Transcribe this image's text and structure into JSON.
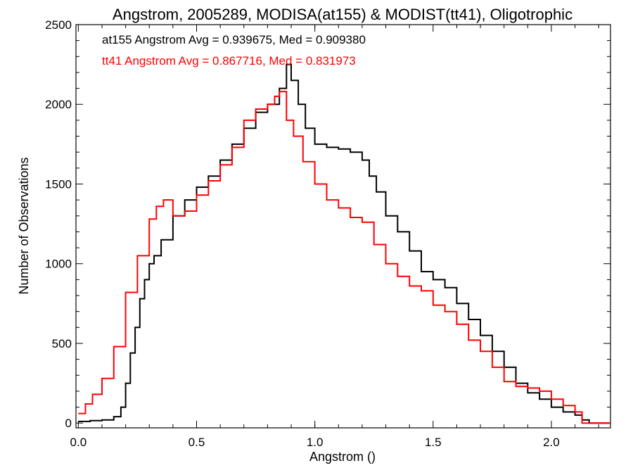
{
  "chart_data": {
    "type": "line",
    "title": "Angstrom, 2005289, MODISA(at155) & MODIST(tt41), Oligotrophic",
    "xlabel": "Angstrom ()",
    "ylabel": "Number of Observations",
    "xlim": [
      -0.01,
      2.25
    ],
    "ylim": [
      -30,
      2500
    ],
    "xticks": [
      "0.0",
      "0.5",
      "1.0",
      "1.5",
      "2.0"
    ],
    "xtick_values": [
      0.0,
      0.5,
      1.0,
      1.5,
      2.0
    ],
    "yticks": [
      "0",
      "500",
      "1000",
      "1500",
      "2000",
      "2500"
    ],
    "ytick_values": [
      0,
      500,
      1000,
      1500,
      2000,
      2500
    ],
    "grid": false,
    "legend": "top-left",
    "annotations": [
      {
        "text": "at155 Angstrom Avg = 0.939675, Med = 0.909380",
        "color": "#000000"
      },
      {
        "text": "tt41 Angstrom Avg = 0.867716, Med = 0.831973",
        "color": "#ff0000"
      }
    ],
    "series": [
      {
        "color": "#000000",
        "style": "step",
        "x": [
          0.0,
          0.05,
          0.1,
          0.15,
          0.18,
          0.2,
          0.22,
          0.24,
          0.26,
          0.28,
          0.3,
          0.32,
          0.35,
          0.4,
          0.45,
          0.5,
          0.55,
          0.6,
          0.65,
          0.7,
          0.75,
          0.8,
          0.85,
          0.88,
          0.9,
          0.93,
          0.96,
          1.0,
          1.05,
          1.1,
          1.15,
          1.2,
          1.23,
          1.26,
          1.3,
          1.35,
          1.4,
          1.45,
          1.5,
          1.55,
          1.6,
          1.65,
          1.7,
          1.75,
          1.8,
          1.85,
          1.9,
          1.95,
          2.0,
          2.05,
          2.1,
          2.13,
          2.16,
          2.2,
          2.25
        ],
        "y": [
          10,
          15,
          20,
          40,
          100,
          250,
          440,
          600,
          780,
          900,
          1000,
          1050,
          1150,
          1300,
          1400,
          1480,
          1550,
          1650,
          1750,
          1850,
          1950,
          2000,
          2100,
          2250,
          2150,
          2000,
          1850,
          1750,
          1730,
          1720,
          1700,
          1650,
          1550,
          1450,
          1300,
          1200,
          1080,
          950,
          900,
          850,
          750,
          650,
          550,
          450,
          350,
          250,
          190,
          150,
          100,
          70,
          50,
          20,
          0,
          0,
          0
        ]
      },
      {
        "color": "#ff0000",
        "style": "step",
        "x": [
          0.0,
          0.03,
          0.06,
          0.1,
          0.15,
          0.2,
          0.25,
          0.3,
          0.33,
          0.36,
          0.4,
          0.45,
          0.5,
          0.55,
          0.6,
          0.65,
          0.7,
          0.75,
          0.8,
          0.83,
          0.85,
          0.88,
          0.91,
          0.95,
          1.0,
          1.05,
          1.1,
          1.15,
          1.2,
          1.25,
          1.3,
          1.35,
          1.4,
          1.45,
          1.5,
          1.55,
          1.6,
          1.65,
          1.7,
          1.75,
          1.8,
          1.85,
          1.9,
          1.95,
          2.0,
          2.05,
          2.1,
          2.13,
          2.15,
          2.2,
          2.25
        ],
        "y": [
          60,
          120,
          180,
          280,
          480,
          820,
          1050,
          1280,
          1360,
          1400,
          1300,
          1330,
          1430,
          1520,
          1620,
          1730,
          1900,
          1970,
          2000,
          2050,
          2080,
          1900,
          1800,
          1640,
          1500,
          1400,
          1350,
          1290,
          1260,
          1120,
          1000,
          920,
          860,
          830,
          740,
          700,
          620,
          520,
          450,
          350,
          260,
          230,
          220,
          200,
          150,
          110,
          70,
          0,
          0,
          0,
          0
        ]
      }
    ]
  }
}
